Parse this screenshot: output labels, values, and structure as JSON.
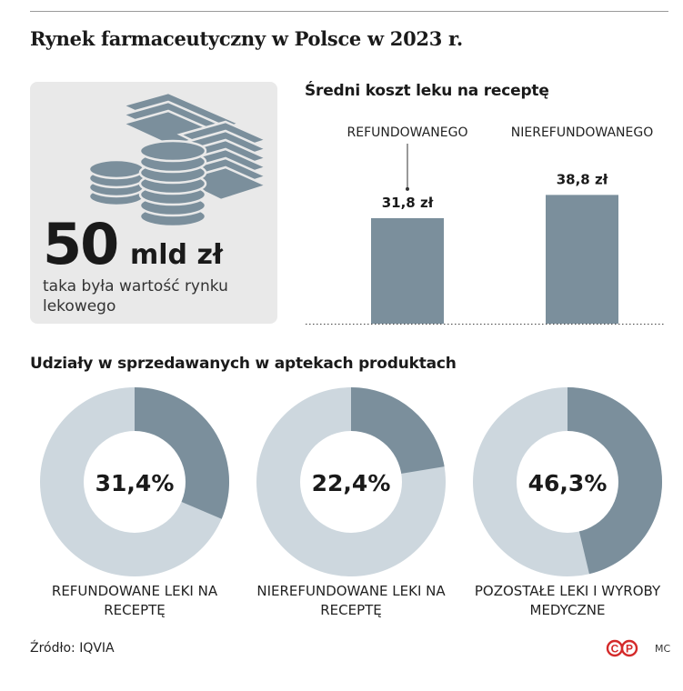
{
  "title": "Rynek farmaceutyczny w Polsce w 2023 r.",
  "stat": {
    "number": "50",
    "unit": "mld zł",
    "description": "taka była wartość rynku lekowego",
    "icon": "money-stack-icon"
  },
  "chart_data": [
    {
      "type": "bar",
      "title": "Średni koszt leku na receptę",
      "categories": [
        "REFUNDOWANEGO",
        "NIEREFUNDOWANEGO"
      ],
      "values": [
        31.8,
        38.8
      ],
      "value_labels": [
        "31,8 zł",
        "38,8 zł"
      ],
      "ylim": [
        0,
        40
      ],
      "grid": false,
      "bar_color": "#7b8f9c"
    },
    {
      "type": "pie",
      "title": "Udziały w sprzedawanych w aptekach produktach",
      "donuts": [
        {
          "label": "REFUNDOWANE LEKI NA RECEPTĘ",
          "value": 31.4,
          "value_label": "31,4%"
        },
        {
          "label": "NIEREFUNDOWANE LEKI NA RECEPTĘ",
          "value": 22.4,
          "value_label": "22,4%"
        },
        {
          "label": "POZOSTAŁE LEKI I WYROBY MEDYCZNE",
          "value": 46.3,
          "value_label": "46,3%"
        }
      ],
      "colors": {
        "share": "#7b8f9c",
        "rest": "#cdd7de"
      }
    }
  ],
  "footer": {
    "source": "Źródło: IQVIA",
    "logo": "©P",
    "author": "MC"
  }
}
